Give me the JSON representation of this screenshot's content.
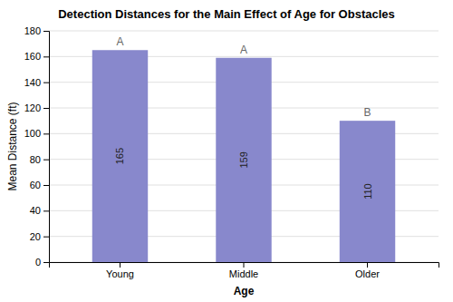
{
  "chart_data": {
    "type": "bar",
    "title": "Detection Distances for the Main Effect of Age for Obstacles",
    "xlabel": "Age",
    "ylabel": "Mean Distance (ft)",
    "categories": [
      "Young",
      "Middle",
      "Older"
    ],
    "values": [
      165,
      159,
      110
    ],
    "annotations": [
      "A",
      "A",
      "B"
    ],
    "color": "#8888cc",
    "ylim": [
      0,
      180
    ],
    "yticks": [
      0,
      20,
      40,
      60,
      80,
      100,
      120,
      140,
      160,
      180
    ],
    "grid": true,
    "data_labels": true
  }
}
